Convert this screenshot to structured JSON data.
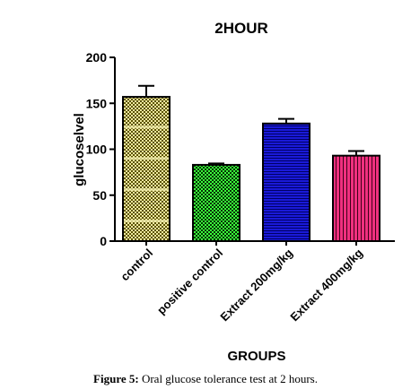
{
  "chart_data": {
    "type": "bar",
    "title": "2HOUR",
    "xlabel": "GROUPS",
    "ylabel": "glucoselvel",
    "ylim": [
      0,
      200
    ],
    "yticks": [
      0,
      50,
      100,
      150,
      200
    ],
    "categories": [
      "control",
      "positive control",
      "Extract 200mg/kg",
      "Extract 400mg/kg"
    ],
    "values": [
      157,
      83,
      128,
      93
    ],
    "errors": [
      12,
      1.5,
      5,
      5
    ],
    "colors": [
      "#c8b800",
      "#22cc22",
      "#1a1ad8",
      "#e62077"
    ],
    "patterns": [
      "checker",
      "checker",
      "horizontal-lines",
      "vertical-lines"
    ],
    "grid": false,
    "legend": "none"
  },
  "caption": {
    "label": "Figure 5:",
    "text": "Oral glucose tolerance test at 2 hours."
  }
}
